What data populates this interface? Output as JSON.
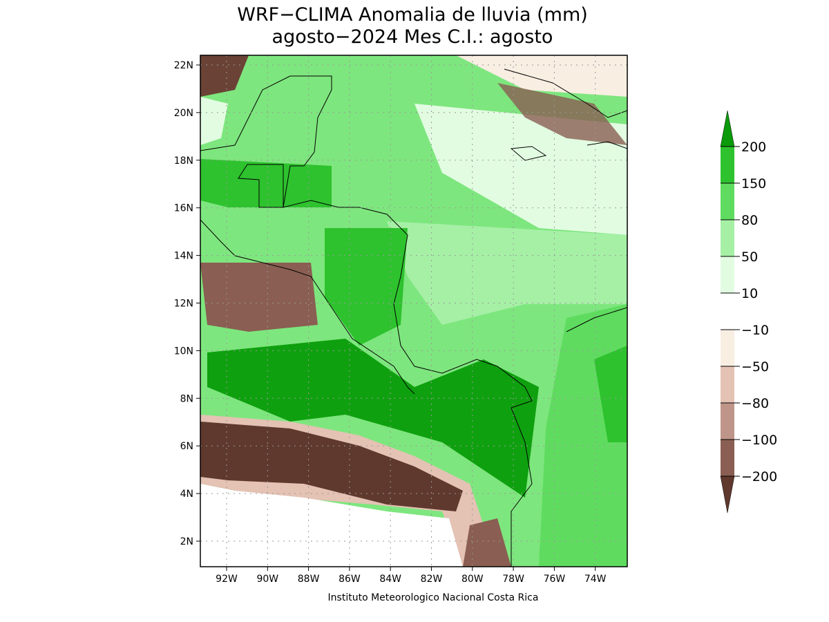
{
  "header": {
    "title": "WRF−CLIMA Anomalia de lluvia (mm)",
    "subtitle": "agosto−2024 Mes C.I.: agosto"
  },
  "map": {
    "lat_labels": [
      "22N",
      "20N",
      "18N",
      "16N",
      "14N",
      "12N",
      "10N",
      "8N",
      "6N",
      "4N",
      "2N"
    ],
    "lon_labels": [
      "92W",
      "90W",
      "88W",
      "86W",
      "84W",
      "82W",
      "80W",
      "78W",
      "76W",
      "74W"
    ]
  },
  "legend": {
    "labels": [
      "200",
      "150",
      "80",
      "50",
      "10",
      "−10",
      "−50",
      "−80",
      "−100",
      "−200"
    ],
    "colors": [
      "#0a9a0a",
      "#2ec22e",
      "#5fdc5f",
      "#a6f0a6",
      "#e2fce2",
      "#ffffff",
      "#f8eee2",
      "#e4c2b4",
      "#bf958a",
      "#8a5e52",
      "#5f392e"
    ]
  },
  "footer": "Instituto Meteorologico Nacional Costa Rica"
}
